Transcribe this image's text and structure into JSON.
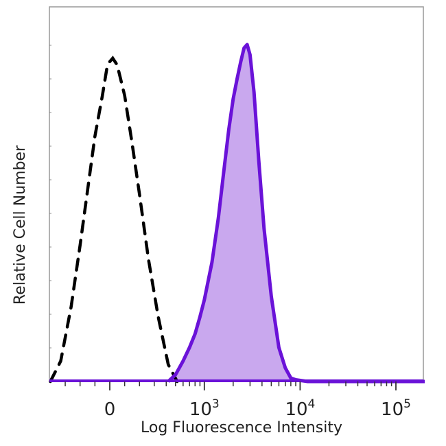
{
  "chart_data": {
    "type": "area",
    "xlabel": "Log Fluorescence Intensity",
    "ylabel": "Relative Cell Number",
    "x_scale": "biexponential",
    "xlim": [
      -400,
      200000
    ],
    "ylim": [
      0,
      100
    ],
    "grid": false,
    "legend": "none",
    "xticks": [
      {
        "value": 0,
        "base": "0",
        "exp": ""
      },
      {
        "value": 1000,
        "base": "10",
        "exp": "3"
      },
      {
        "value": 10000,
        "base": "10",
        "exp": "4"
      },
      {
        "value": 100000,
        "base": "10",
        "exp": "5"
      }
    ],
    "series": [
      {
        "style": "dashed",
        "color": "#000000",
        "x": [
          -400,
          -330,
          -260,
          -200,
          -150,
          -100,
          -50,
          -20,
          0,
          20,
          50,
          100,
          150,
          200,
          260,
          330,
          420,
          520
        ],
        "y": [
          0,
          6,
          22,
          40,
          56,
          72,
          84,
          92,
          94,
          95,
          93,
          84,
          70,
          55,
          36,
          19,
          5,
          0
        ]
      },
      {
        "style": "filled",
        "color": "#6a12d8",
        "fill": "#c9a8ee",
        "x": [
          420,
          500,
          600,
          700,
          800,
          900,
          1000,
          1200,
          1400,
          1600,
          1800,
          2000,
          2200,
          2400,
          2600,
          2800,
          3000,
          3300,
          3700,
          4200,
          5000,
          6000,
          7000,
          8000,
          9000,
          12000,
          20000,
          50000,
          100000,
          200000
        ],
        "y": [
          0,
          2,
          6,
          10,
          14,
          19,
          24,
          35,
          48,
          62,
          74,
          83,
          89,
          94,
          98,
          99,
          96,
          85,
          65,
          45,
          25,
          10,
          4,
          1,
          0.5,
          0,
          0,
          0,
          0,
          0
        ]
      }
    ]
  }
}
